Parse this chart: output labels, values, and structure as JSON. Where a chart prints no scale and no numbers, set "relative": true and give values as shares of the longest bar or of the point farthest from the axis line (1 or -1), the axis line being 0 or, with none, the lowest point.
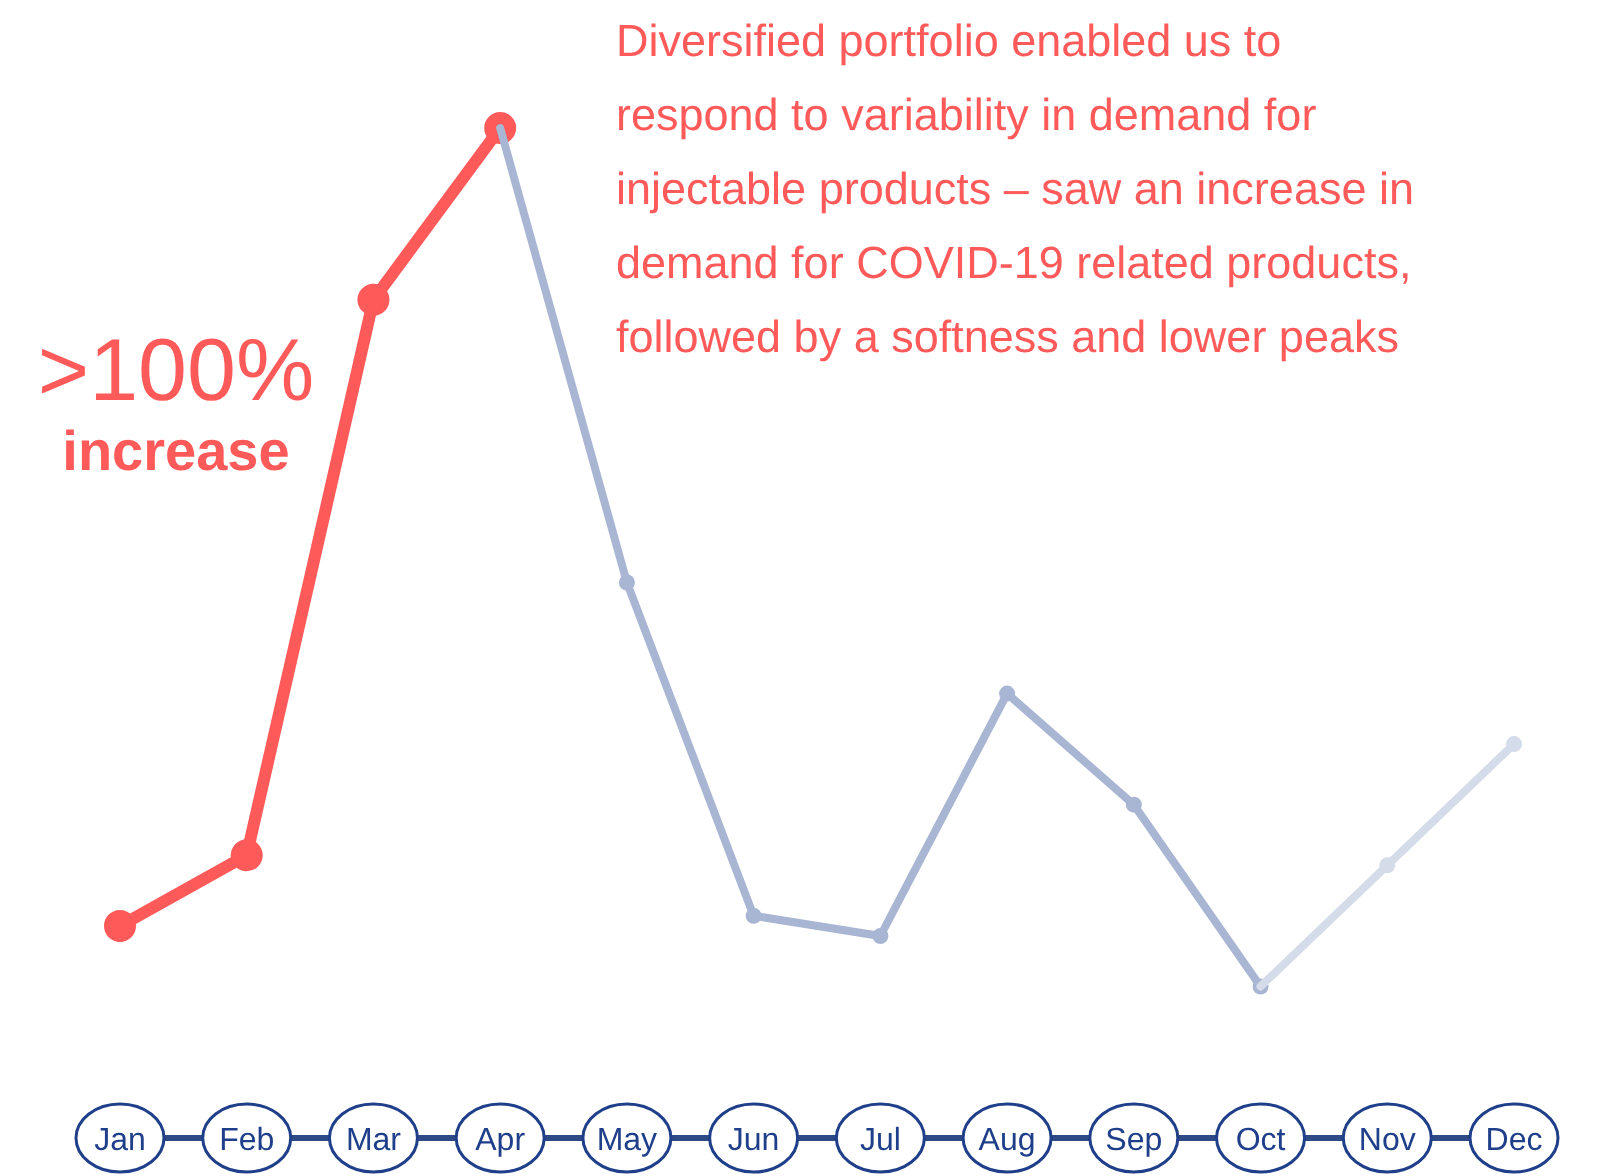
{
  "chart_data": {
    "type": "line",
    "relative": true,
    "categories": [
      "Jan",
      "Feb",
      "Mar",
      "Apr",
      "May",
      "Jun",
      "Jul",
      "Aug",
      "Sep",
      "Oct",
      "Nov",
      "Dec"
    ],
    "series": [
      {
        "color": "#ff5a5a",
        "values": [
          0.21,
          0.28,
          0.83,
          1,
          null,
          null,
          null,
          null,
          null,
          null,
          null,
          null
        ]
      },
      {
        "color": "#a9b6d3",
        "values": [
          null,
          null,
          null,
          1,
          0.55,
          0.22,
          0.2,
          0.44,
          0.33,
          0.15,
          null,
          null
        ]
      },
      {
        "color": "#d4dcea",
        "values": [
          null,
          null,
          null,
          null,
          null,
          null,
          null,
          null,
          null,
          0.15,
          0.27,
          0.39
        ]
      }
    ],
    "marker": "circle",
    "line_style": "solid",
    "annotations": [
      ">100%",
      "increase",
      "Diversified portfolio enabled us to respond to variability in demand for injectable products – saw an increase in demand for COVID-19 related products, followed by a softness and lower peaks"
    ]
  }
}
